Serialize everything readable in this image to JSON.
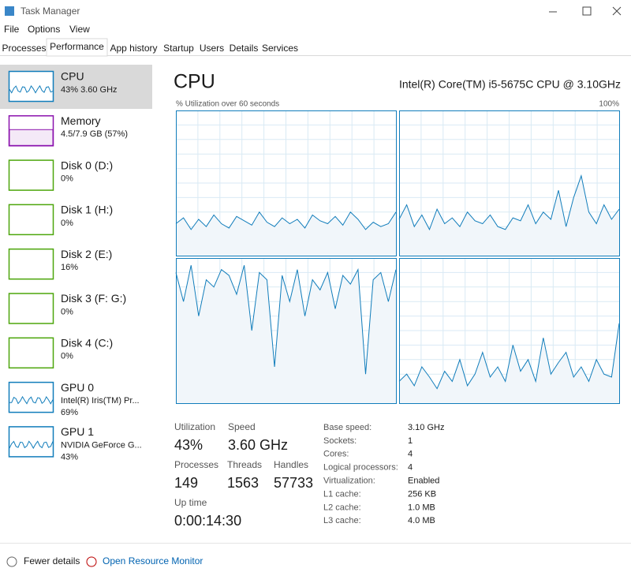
{
  "window": {
    "title": "Task Manager"
  },
  "menu": [
    "File",
    "Options",
    "View"
  ],
  "tabs": [
    "Processes",
    "Performance",
    "App history",
    "Startup",
    "Users",
    "Details",
    "Services"
  ],
  "active_tab": 1,
  "sidebar": [
    {
      "name": "CPU",
      "detail": "43% 3.60 GHz",
      "color": "#117dbb"
    },
    {
      "name": "Memory",
      "detail": "4.5/7.9 GB (57%)",
      "color": "#8b12ae"
    },
    {
      "name": "Disk 0 (D:)",
      "detail": "0%",
      "color": "#4da60c"
    },
    {
      "name": "Disk 1 (H:)",
      "detail": "0%",
      "color": "#4da60c"
    },
    {
      "name": "Disk 2 (E:)",
      "detail": "16%",
      "color": "#4da60c"
    },
    {
      "name": "Disk 3 (F: G:)",
      "detail": "0%",
      "color": "#4da60c"
    },
    {
      "name": "Disk 4 (C:)",
      "detail": "0%",
      "color": "#4da60c"
    },
    {
      "name": "GPU 0",
      "detail": "Intel(R) Iris(TM) Pr...",
      "detail2": "69%",
      "color": "#117dbb"
    },
    {
      "name": "GPU 1",
      "detail": "NVIDIA GeForce G...",
      "detail2": "43%",
      "color": "#117dbb"
    }
  ],
  "main": {
    "title": "CPU",
    "processor": "Intel(R) Core(TM) i5-5675C CPU @ 3.10GHz",
    "graph_label": "% Utilization over 60 seconds",
    "graph_max": "100%",
    "graph_ylim": [
      0,
      100
    ],
    "cores": [
      [
        22,
        26,
        18,
        25,
        20,
        28,
        22,
        19,
        27,
        24,
        21,
        30,
        23,
        20,
        26,
        22,
        25,
        19,
        28,
        24,
        22,
        27,
        21,
        30,
        25,
        18,
        23,
        20,
        22,
        30
      ],
      [
        25,
        35,
        20,
        28,
        18,
        32,
        22,
        26,
        20,
        30,
        24,
        22,
        28,
        20,
        18,
        26,
        24,
        35,
        22,
        30,
        25,
        45,
        20,
        40,
        55,
        30,
        22,
        35,
        25,
        32
      ],
      [
        90,
        70,
        95,
        60,
        85,
        80,
        92,
        88,
        75,
        95,
        50,
        90,
        85,
        25,
        88,
        70,
        92,
        60,
        85,
        78,
        90,
        65,
        88,
        82,
        92,
        20,
        85,
        90,
        70,
        92
      ],
      [
        15,
        20,
        12,
        25,
        18,
        10,
        22,
        15,
        30,
        12,
        20,
        35,
        18,
        25,
        15,
        40,
        22,
        30,
        15,
        45,
        20,
        28,
        35,
        18,
        25,
        15,
        30,
        20,
        18,
        55
      ]
    ],
    "stats": [
      {
        "label": "Utilization",
        "value": "43%"
      },
      {
        "label": "Speed",
        "value": "3.60 GHz"
      },
      {
        "label": "Processes",
        "value": "149"
      },
      {
        "label": "Threads",
        "value": "1563"
      },
      {
        "label": "Handles",
        "value": "57733"
      },
      {
        "label": "Up time",
        "value": "0:00:14:30"
      }
    ],
    "specs": [
      [
        "Base speed:",
        "3.10 GHz"
      ],
      [
        "Sockets:",
        "1"
      ],
      [
        "Cores:",
        "4"
      ],
      [
        "Logical processors:",
        "4"
      ],
      [
        "Virtualization:",
        "Enabled"
      ],
      [
        "L1 cache:",
        "256 KB"
      ],
      [
        "L2 cache:",
        "1.0 MB"
      ],
      [
        "L3 cache:",
        "4.0 MB"
      ]
    ]
  },
  "footer": {
    "fewer": "Fewer details",
    "monitor": "Open Resource Monitor"
  }
}
